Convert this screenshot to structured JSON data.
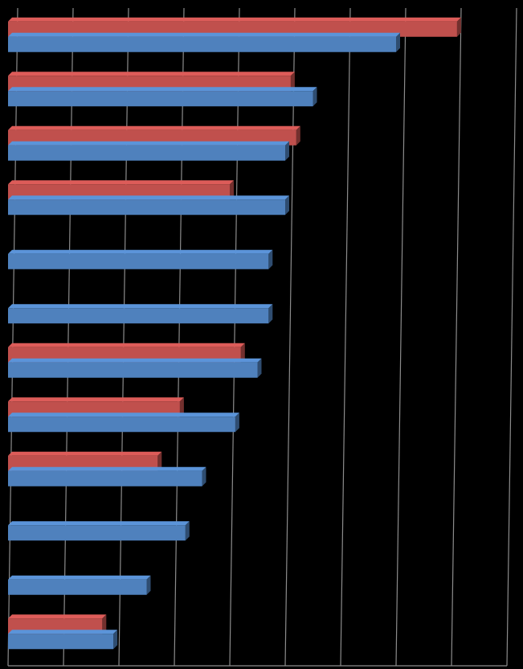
{
  "chart_data": {
    "type": "bar",
    "orientation": "horizontal",
    "categories": [
      null,
      null,
      null,
      null,
      null,
      null,
      null,
      null,
      null,
      null,
      null,
      null
    ],
    "series": [
      {
        "color": "#c0504d",
        "values": [
          8.1,
          5.1,
          5.2,
          4.0,
          null,
          null,
          4.2,
          3.1,
          2.7,
          null,
          null,
          1.7
        ]
      },
      {
        "color": "#4f81bd",
        "values": [
          7.0,
          5.5,
          5.0,
          5.0,
          4.7,
          4.7,
          4.5,
          4.1,
          3.5,
          3.2,
          2.5,
          1.9
        ]
      }
    ],
    "xlim": [
      0,
      9
    ],
    "xticks": [
      0,
      1,
      2,
      3,
      4,
      5,
      6,
      7,
      8,
      9
    ],
    "grid": true
  }
}
